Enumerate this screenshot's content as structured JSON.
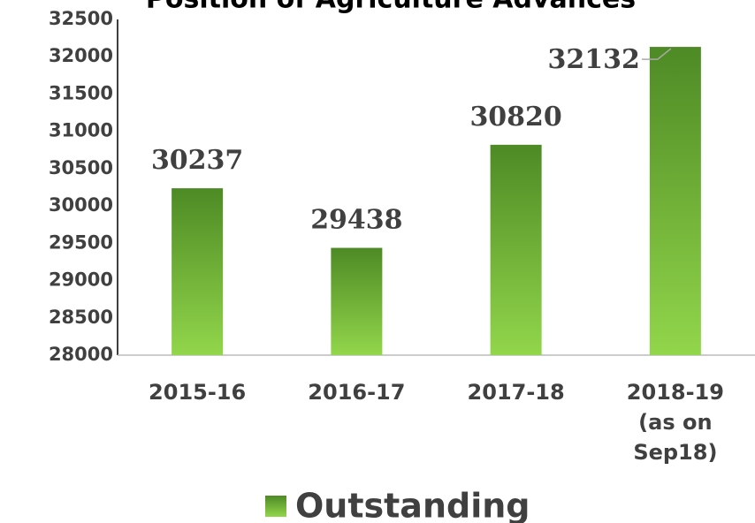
{
  "chart_data": {
    "type": "bar",
    "title": "Position of Agriculture Advances",
    "categories": [
      "2015-16",
      "2016-17",
      "2017-18",
      "2018-19 (as on Sep18)"
    ],
    "series": [
      {
        "name": "Outstanding",
        "color": "#6aaa32",
        "values": [
          30237,
          29438,
          30820,
          32132
        ]
      }
    ],
    "ylim": [
      28000,
      32500
    ],
    "yticks": [
      28000,
      28500,
      29000,
      29500,
      30000,
      30500,
      31000,
      31500,
      32000,
      32500
    ],
    "legend": "bottom"
  }
}
